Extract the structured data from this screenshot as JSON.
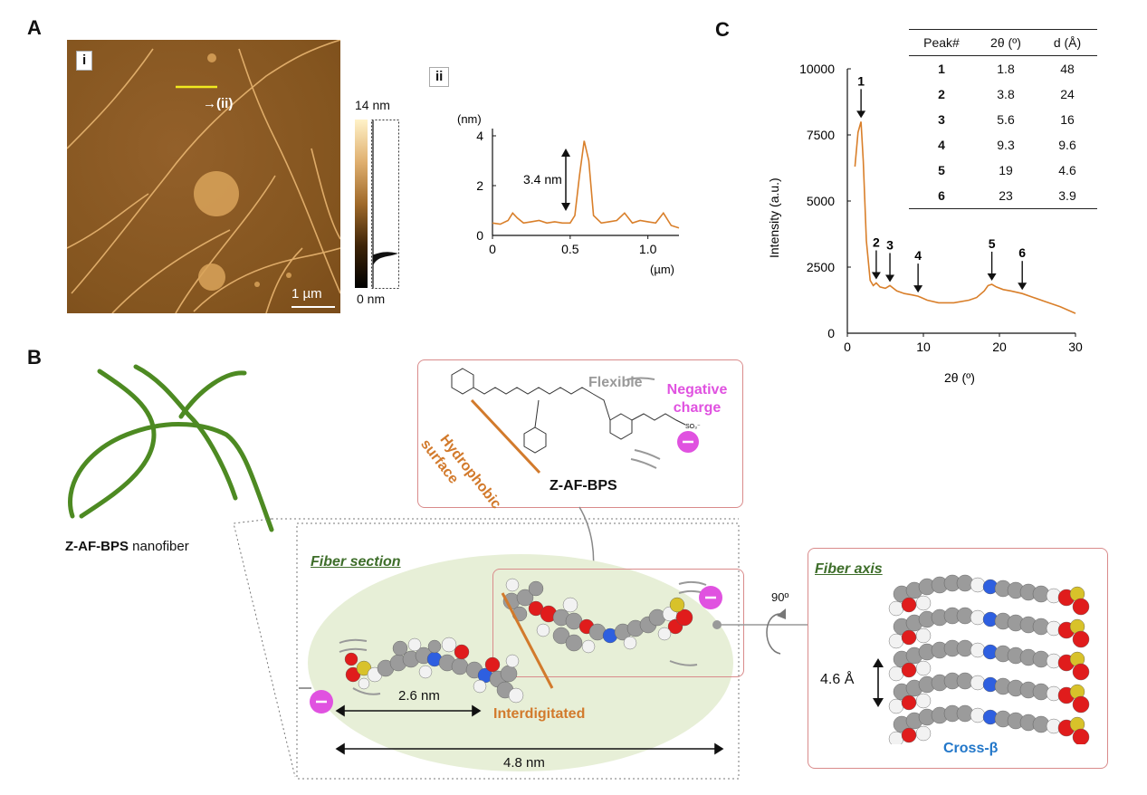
{
  "panels": {
    "a": "A",
    "b": "B",
    "c": "C"
  },
  "panel_a": {
    "tag_i": "i",
    "arrow_label": "→(ii)",
    "scalebar": "1 µm",
    "colorbar_max": "14 nm",
    "colorbar_min": "0 nm",
    "tag_ii": "ii"
  },
  "profile": {
    "y_unit": "(nm)",
    "x_unit": "(µm)",
    "y_ticks": [
      "0",
      "2",
      "4"
    ],
    "x_ticks": [
      "0",
      "0.5",
      "1.0"
    ],
    "annotation": "3.4 nm"
  },
  "panel_b": {
    "nanofiber_name": "Z-AF-BPS",
    "nanofiber_suffix": " nanofiber",
    "molecule_name": "Z-AF-BPS",
    "flexible": "Flexible",
    "negative_charge_1": "Negative",
    "negative_charge_2": "charge",
    "hydrophobic_1": "Hydrophobic",
    "hydrophobic_2": "surface",
    "so3": "SO₃⁻",
    "fiber_section": "Fiber section",
    "fiber_axis": "Fiber axis",
    "interdigitated": "Interdigitated",
    "dim_short": "2.6 nm",
    "dim_long": "4.8 nm",
    "angle": "90º",
    "stack_spacing": "4.6 Å",
    "cross_beta": "Cross-β"
  },
  "panel_c": {
    "ylabel": "Intensity (a.u.)",
    "xlabel": "2θ (º)",
    "y_ticks": [
      "0",
      "2500",
      "5000",
      "7500",
      "10000"
    ],
    "x_ticks": [
      "0",
      "10",
      "20",
      "30"
    ],
    "table_headers": [
      "Peak#",
      "2θ (º)",
      "d (Å)"
    ],
    "table_rows": [
      [
        "1",
        "1.8",
        "48"
      ],
      [
        "2",
        "3.8",
        "24"
      ],
      [
        "3",
        "5.6",
        "16"
      ],
      [
        "4",
        "9.3",
        "9.6"
      ],
      [
        "5",
        "19",
        "4.6"
      ],
      [
        "6",
        "23",
        "3.9"
      ]
    ]
  },
  "chart_data": [
    {
      "type": "line",
      "xlabel": "(µm)",
      "ylabel": "(nm)",
      "xlim": [
        0,
        1.2
      ],
      "ylim": [
        0,
        4
      ],
      "x": [
        0,
        0.05,
        0.1,
        0.13,
        0.16,
        0.2,
        0.25,
        0.3,
        0.35,
        0.4,
        0.45,
        0.5,
        0.53,
        0.56,
        0.59,
        0.62,
        0.65,
        0.7,
        0.75,
        0.8,
        0.85,
        0.9,
        0.95,
        1.0,
        1.05,
        1.1,
        1.15,
        1.2
      ],
      "y": [
        0.5,
        0.45,
        0.6,
        0.9,
        0.7,
        0.5,
        0.55,
        0.6,
        0.5,
        0.55,
        0.5,
        0.5,
        0.8,
        2.4,
        3.8,
        3.0,
        0.8,
        0.5,
        0.55,
        0.6,
        0.9,
        0.5,
        0.6,
        0.55,
        0.5,
        0.9,
        0.4,
        0.3
      ],
      "annotation": "3.4 nm"
    },
    {
      "type": "line",
      "xlabel": "2θ (º)",
      "ylabel": "Intensity (a.u.)",
      "xlim": [
        0,
        30
      ],
      "ylim": [
        0,
        10000
      ],
      "x": [
        1.0,
        1.4,
        1.8,
        2.1,
        2.5,
        3.0,
        3.4,
        3.8,
        4.3,
        5.0,
        5.6,
        6.5,
        7.5,
        8.5,
        9.3,
        10.5,
        12,
        14,
        16,
        17,
        18,
        18.5,
        19,
        19.6,
        20.5,
        21.5,
        23,
        24.5,
        26,
        28,
        30
      ],
      "y": [
        6300,
        7600,
        8000,
        6500,
        3500,
        2000,
        1800,
        1900,
        1750,
        1700,
        1800,
        1600,
        1500,
        1450,
        1400,
        1250,
        1150,
        1150,
        1250,
        1350,
        1600,
        1800,
        1850,
        1750,
        1650,
        1600,
        1500,
        1350,
        1200,
        1000,
        750
      ],
      "peaks": [
        {
          "label": "1",
          "x": 1.8,
          "y": 8000
        },
        {
          "label": "2",
          "x": 3.8,
          "y": 1900
        },
        {
          "label": "3",
          "x": 5.6,
          "y": 1800
        },
        {
          "label": "4",
          "x": 9.3,
          "y": 1400
        },
        {
          "label": "5",
          "x": 19,
          "y": 1850
        },
        {
          "label": "6",
          "x": 23,
          "y": 1500
        }
      ]
    }
  ],
  "colors": {
    "afm_bg": "#8a5a24",
    "trace": "#d97f2a",
    "fiber_green": "#4d8a22",
    "pink_border": "#d98b8b",
    "magenta": "#e052e0",
    "orange_label": "#d27a2c",
    "green_label": "#3e6e2a",
    "cross_beta_blue": "#2277c9",
    "section_bg": "#e7efd7"
  }
}
